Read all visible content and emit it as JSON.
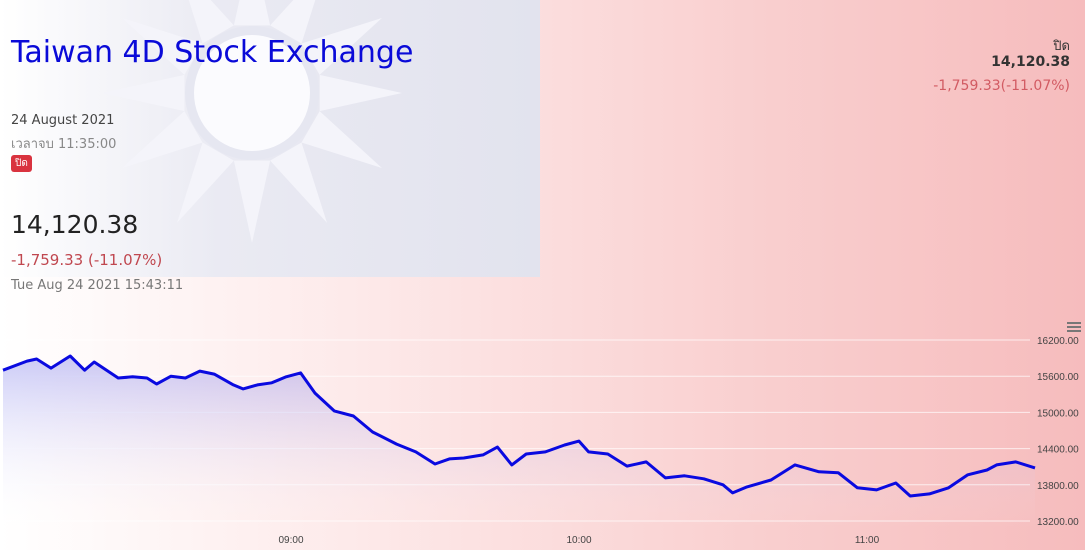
{
  "header": {
    "title": "Taiwan 4D Stock Exchange",
    "date": "24 August 2021",
    "end_time": "เวลาจบ 11:35:00",
    "status_badge": "ปิด"
  },
  "summary": {
    "price": "14,120.38",
    "change": "-1,759.33 (-11.07%)",
    "timestamp": "Tue Aug 24 2021 15:43:11"
  },
  "right_panel": {
    "label": "ปิด",
    "price": "14,120.38",
    "change": "-1,759.33(-11.07%)"
  },
  "colors": {
    "title": "#0a0ad8",
    "line": "#0a0ae0",
    "negative": "#c0474f",
    "badge": "#d9333f"
  },
  "icons": {
    "menu": "hamburger-menu-icon",
    "flag": "taiwan-flag-sun"
  },
  "chart_data": {
    "type": "area",
    "y_ticks": [
      "16200.00",
      "15600.00",
      "15000.00",
      "14400.00",
      "13800.00",
      "13200.00"
    ],
    "x_ticks": [
      "09:00",
      "10:00",
      "11:00"
    ],
    "ylim": [
      13200,
      16200
    ],
    "xlim": [
      "08:00",
      "11:35"
    ],
    "grid": true,
    "points": [
      [
        "08:00",
        15700
      ],
      [
        "08:05",
        15850
      ],
      [
        "08:07",
        15885
      ],
      [
        "08:10",
        15735
      ],
      [
        "08:14",
        15935
      ],
      [
        "08:17",
        15700
      ],
      [
        "08:19",
        15835
      ],
      [
        "08:24",
        15570
      ],
      [
        "08:27",
        15590
      ],
      [
        "08:30",
        15570
      ],
      [
        "08:32",
        15470
      ],
      [
        "08:35",
        15600
      ],
      [
        "08:38",
        15570
      ],
      [
        "08:41",
        15685
      ],
      [
        "08:44",
        15635
      ],
      [
        "08:48",
        15455
      ],
      [
        "08:50",
        15390
      ],
      [
        "08:53",
        15455
      ],
      [
        "08:56",
        15490
      ],
      [
        "08:59",
        15590
      ],
      [
        "09:02",
        15655
      ],
      [
        "09:05",
        15320
      ],
      [
        "09:09",
        15025
      ],
      [
        "09:13",
        14940
      ],
      [
        "09:17",
        14675
      ],
      [
        "09:22",
        14475
      ],
      [
        "09:26",
        14345
      ],
      [
        "09:30",
        14145
      ],
      [
        "09:33",
        14230
      ],
      [
        "09:36",
        14245
      ],
      [
        "09:40",
        14295
      ],
      [
        "09:43",
        14425
      ],
      [
        "09:46",
        14130
      ],
      [
        "09:49",
        14310
      ],
      [
        "09:53",
        14345
      ],
      [
        "09:57",
        14460
      ],
      [
        "10:00",
        14525
      ],
      [
        "10:02",
        14345
      ],
      [
        "10:06",
        14310
      ],
      [
        "10:10",
        14110
      ],
      [
        "10:14",
        14180
      ],
      [
        "10:18",
        13915
      ],
      [
        "10:22",
        13950
      ],
      [
        "10:26",
        13900
      ],
      [
        "10:30",
        13800
      ],
      [
        "10:32",
        13665
      ],
      [
        "10:35",
        13765
      ],
      [
        "10:40",
        13880
      ],
      [
        "10:45",
        14130
      ],
      [
        "10:50",
        14015
      ],
      [
        "10:54",
        14000
      ],
      [
        "10:58",
        13750
      ],
      [
        "11:02",
        13715
      ],
      [
        "11:06",
        13830
      ],
      [
        "11:09",
        13615
      ],
      [
        "11:13",
        13650
      ],
      [
        "11:17",
        13750
      ],
      [
        "11:21",
        13965
      ],
      [
        "11:25",
        14045
      ],
      [
        "11:27",
        14130
      ],
      [
        "11:31",
        14180
      ],
      [
        "11:35",
        14080
      ]
    ]
  }
}
